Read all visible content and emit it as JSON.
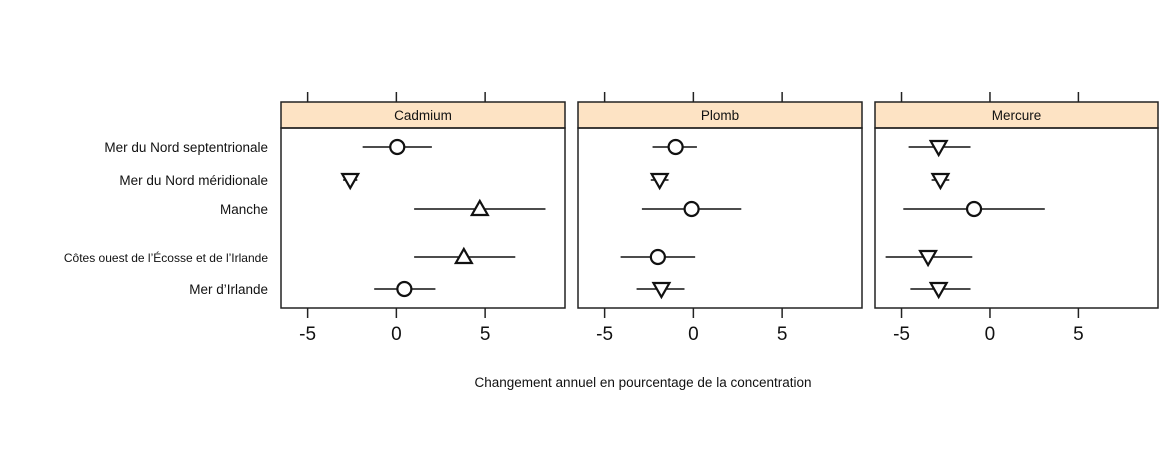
{
  "chart_data": {
    "type": "dot-plot with confidence intervals (faceted)",
    "xlabel": "Changement annuel en pourcentage de la concentration",
    "xlim": [
      -6.5,
      9.5
    ],
    "xticks": [
      -5,
      0,
      5
    ],
    "grid": false,
    "strip_color": "#FDE3C4",
    "categories": [
      "Mer du Nord septentrionale",
      "Mer du Nord méridionale",
      "Manche",
      "Côtes ouest de l’Écosse et de l’Irlande",
      "Mer d’Irlande"
    ],
    "panels": [
      {
        "name": "Cadmium",
        "points": [
          {
            "value": 0.05,
            "low": -1.9,
            "high": 2.0,
            "marker": "circle"
          },
          {
            "value": -2.6,
            "low": -3.0,
            "high": -2.2,
            "marker": "triangle-down"
          },
          {
            "value": 4.7,
            "low": 1.0,
            "high": 8.4,
            "marker": "triangle-up"
          },
          {
            "value": 3.8,
            "low": 1.0,
            "high": 6.7,
            "marker": "triangle-up"
          },
          {
            "value": 0.45,
            "low": -1.25,
            "high": 2.2,
            "marker": "circle"
          }
        ]
      },
      {
        "name": "Plomb",
        "points": [
          {
            "value": -1.0,
            "low": -2.3,
            "high": 0.2,
            "marker": "circle"
          },
          {
            "value": -1.9,
            "low": -2.4,
            "high": -1.4,
            "marker": "triangle-down"
          },
          {
            "value": -0.1,
            "low": -2.9,
            "high": 2.7,
            "marker": "circle"
          },
          {
            "value": -2.0,
            "low": -4.1,
            "high": 0.1,
            "marker": "circle"
          },
          {
            "value": -1.8,
            "low": -3.2,
            "high": -0.5,
            "marker": "triangle-down"
          }
        ]
      },
      {
        "name": "Mercure",
        "points": [
          {
            "value": -2.9,
            "low": -4.6,
            "high": -1.1,
            "marker": "triangle-down"
          },
          {
            "value": -2.8,
            "low": -3.3,
            "high": -2.3,
            "marker": "triangle-down"
          },
          {
            "value": -0.9,
            "low": -4.9,
            "high": 3.1,
            "marker": "circle"
          },
          {
            "value": -3.5,
            "low": -5.9,
            "high": -1.0,
            "marker": "triangle-down"
          },
          {
            "value": -2.9,
            "low": -4.5,
            "high": -1.1,
            "marker": "triangle-down"
          }
        ]
      }
    ]
  }
}
